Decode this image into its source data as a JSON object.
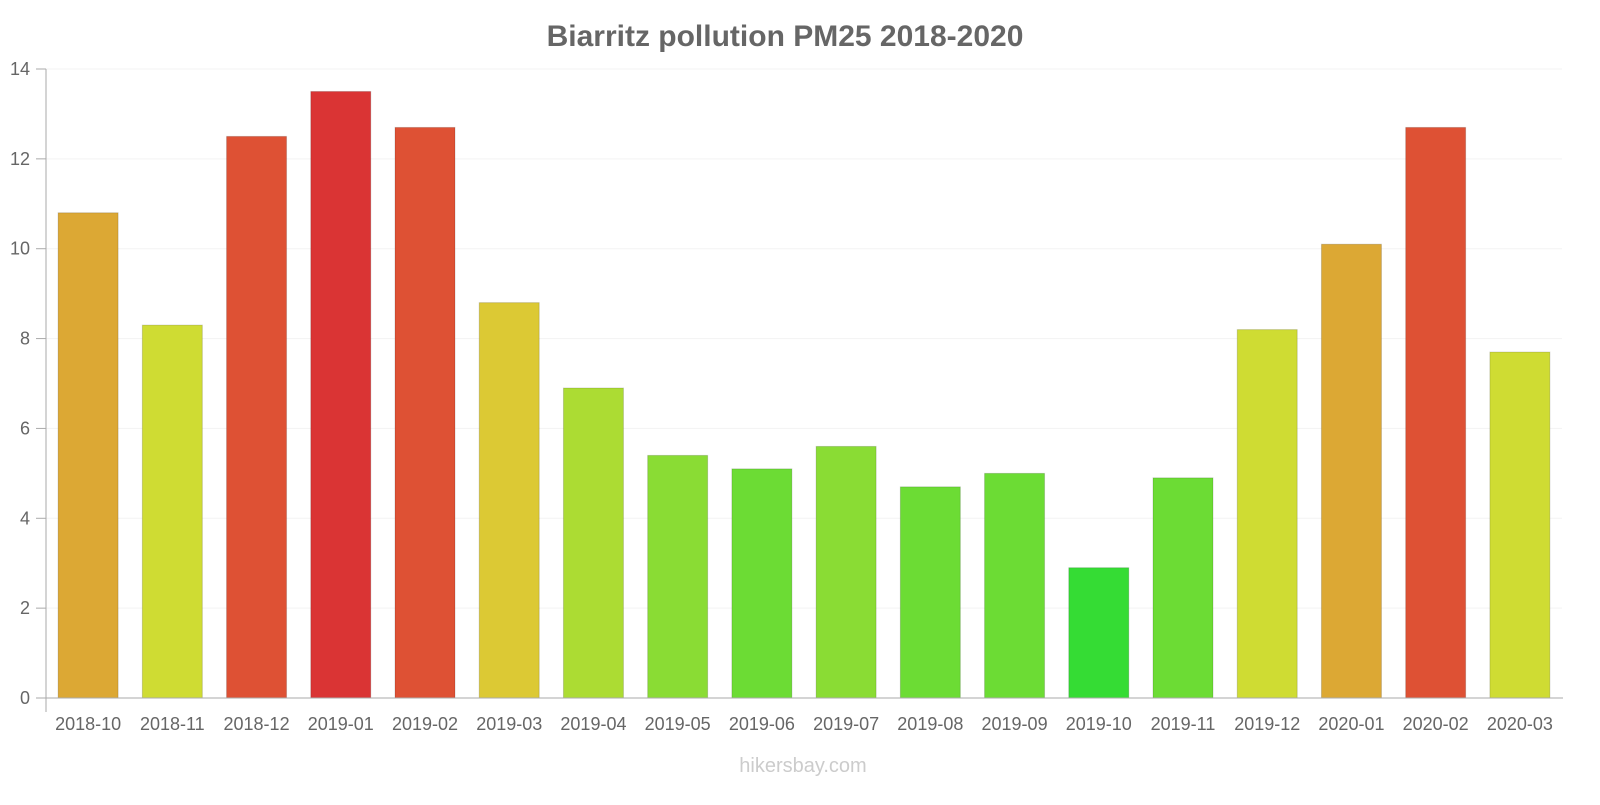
{
  "chart_data": {
    "type": "bar",
    "title": "Biarritz pollution PM25 2018-2020",
    "xlabel": "",
    "ylabel": "",
    "ylim": [
      0,
      14
    ],
    "yticks": [
      "0",
      "2",
      "4",
      "6",
      "8",
      "10",
      "12",
      "14"
    ],
    "grid": true,
    "categories": [
      "2018-10",
      "2018-11",
      "2018-12",
      "2019-01",
      "2019-02",
      "2019-03",
      "2019-04",
      "2019-05",
      "2019-06",
      "2019-07",
      "2019-08",
      "2019-09",
      "2019-10",
      "2019-11",
      "2019-12",
      "2020-01",
      "2020-02",
      "2020-03"
    ],
    "values": [
      10.8,
      8.3,
      12.5,
      13.5,
      12.7,
      8.8,
      6.9,
      5.4,
      5.1,
      5.6,
      4.7,
      5.0,
      2.9,
      4.9,
      8.2,
      10.1,
      12.7,
      7.7
    ],
    "colors": [
      "#dca834",
      "#cfdc33",
      "#de5134",
      "#da3434",
      "#de5134",
      "#dcc934",
      "#acdc33",
      "#8adc34",
      "#6cdc34",
      "#8adc34",
      "#6cdc34",
      "#6cdc34",
      "#35dc34",
      "#6cdc34",
      "#cfdc33",
      "#dca834",
      "#de5134",
      "#cfdc33"
    ]
  },
  "watermark": "hikersbay.com"
}
